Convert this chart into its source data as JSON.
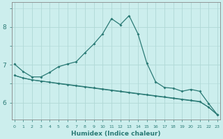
{
  "xlabel": "Humidex (Indice chaleur)",
  "background_color": "#cceeed",
  "grid_color": "#b0d8d6",
  "line_color": "#2a7a75",
  "x_values": [
    0,
    1,
    2,
    3,
    4,
    5,
    6,
    7,
    8,
    9,
    10,
    11,
    12,
    13,
    14,
    15,
    16,
    17,
    18,
    19,
    20,
    21,
    22,
    23
  ],
  "line1_y": [
    7.02,
    6.82,
    6.68,
    6.68,
    6.8,
    6.95,
    7.02,
    7.08,
    7.32,
    7.55,
    7.82,
    8.22,
    8.06,
    8.3,
    7.82,
    7.05,
    6.55,
    6.4,
    6.38,
    6.3,
    6.35,
    6.3,
    5.98,
    5.68
  ],
  "line2_y": [
    6.72,
    6.65,
    6.6,
    6.57,
    6.54,
    6.51,
    6.48,
    6.45,
    6.42,
    6.39,
    6.36,
    6.33,
    6.3,
    6.27,
    6.24,
    6.21,
    6.18,
    6.15,
    6.12,
    6.09,
    6.06,
    6.03,
    5.88,
    5.68
  ],
  "line3_y": [
    6.72,
    6.65,
    6.6,
    6.57,
    6.54,
    6.5,
    6.47,
    6.44,
    6.41,
    6.38,
    6.35,
    6.32,
    6.29,
    6.26,
    6.23,
    6.2,
    6.17,
    6.14,
    6.11,
    6.08,
    6.05,
    6.02,
    5.88,
    5.68
  ],
  "ylim": [
    5.55,
    8.65
  ],
  "yticks": [
    6,
    7,
    8
  ],
  "xticks": [
    0,
    1,
    2,
    3,
    4,
    5,
    6,
    7,
    8,
    9,
    10,
    11,
    12,
    13,
    14,
    15,
    16,
    17,
    18,
    19,
    20,
    21,
    22,
    23
  ]
}
